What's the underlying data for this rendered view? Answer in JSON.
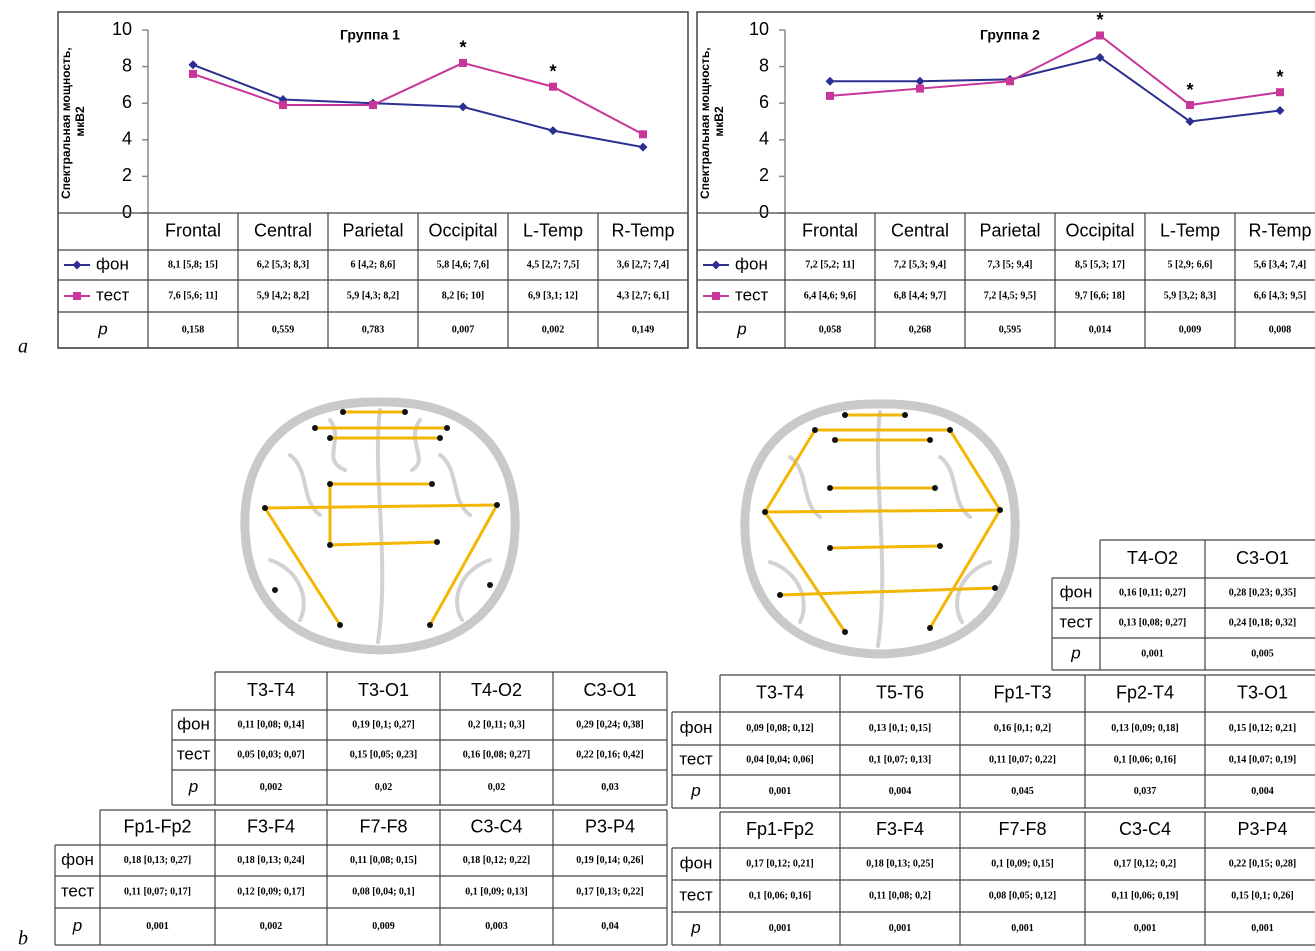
{
  "panel_labels": [
    "a",
    "b"
  ],
  "chart_data": [
    {
      "type": "line",
      "title": "Группа 1",
      "y_label": "Спектральная мощность, мкВ2",
      "categories": [
        "Frontal",
        "Central",
        "Parietal",
        "Occipital",
        "L-Temp",
        "R-Temp"
      ],
      "series": [
        {
          "name": "фон",
          "color": "#2b2f8f",
          "marker": "diamond",
          "values": [
            8.1,
            6.2,
            6,
            5.8,
            4.5,
            3.6
          ],
          "value_labels": [
            "8,1 [5,8; 15]",
            "6,2 [5,3; 8,3]",
            "6 [4,2; 8,6]",
            "5,8 [4,6; 7,6]",
            "4,5 [2,7; 7,5]",
            "3,6 [2,7; 7,4]"
          ]
        },
        {
          "name": "тест",
          "color": "#c8369a",
          "marker": "square",
          "values": [
            7.6,
            5.9,
            5.9,
            8.2,
            6.9,
            4.3
          ],
          "value_labels": [
            "7,6 [5,6; 11]",
            "5,9 [4,2; 8,2]",
            "5,9 [4,3; 8,2]",
            "8,2 [6; 10]",
            "6,9 [3,1; 12]",
            "4,3 [2,7; 6,1]"
          ]
        }
      ],
      "ylim": [
        0,
        10
      ],
      "yticks": [
        0,
        2,
        4,
        6,
        8,
        10
      ],
      "p_label": "p",
      "p_values": [
        "0,158",
        "0,559",
        "0,783",
        "0,007",
        "0,002",
        "0,149"
      ],
      "annotations": [
        {
          "text": "*",
          "x": "Occipital"
        },
        {
          "text": "*",
          "x": "L-Temp"
        }
      ]
    },
    {
      "type": "line",
      "title": "Группа 2",
      "y_label": "Спектральная мощность, мкВ2",
      "categories": [
        "Frontal",
        "Central",
        "Parietal",
        "Occipital",
        "L-Temp",
        "R-Temp"
      ],
      "series": [
        {
          "name": "фон",
          "color": "#2b2f8f",
          "marker": "diamond",
          "values": [
            7.2,
            7.2,
            7.3,
            8.5,
            5,
            5.6
          ],
          "value_labels": [
            "7,2 [5,2; 11]",
            "7,2 [5,3; 9,4]",
            "7,3 [5; 9,4]",
            "8,5 [5,3; 17]",
            "5 [2,9; 6,6]",
            "5,6 [3,4; 7,4]"
          ]
        },
        {
          "name": "тест",
          "color": "#c8369a",
          "marker": "square",
          "values": [
            6.4,
            6.8,
            7.2,
            9.7,
            5.9,
            6.6
          ],
          "value_labels": [
            "6,4 [4,6; 9,6]",
            "6,8 [4,4; 9,7]",
            "7,2 [4,5; 9,5]",
            "9,7 [6,6; 18]",
            "5,9 [3,2; 8,3]",
            "6,6 [4,3; 9,5]"
          ]
        }
      ],
      "ylim": [
        0,
        10
      ],
      "yticks": [
        0,
        2,
        4,
        6,
        8,
        10
      ],
      "p_label": "p",
      "p_values": [
        "0,058",
        "0,268",
        "0,595",
        "0,014",
        "0,009",
        "0,008"
      ],
      "annotations": [
        {
          "text": "*",
          "x": "Occipital"
        },
        {
          "text": "*",
          "x": "L-Temp"
        },
        {
          "text": "*",
          "x": "R-Temp"
        }
      ]
    }
  ],
  "tables": [
    {
      "columns": [
        "T3-T4",
        "T3-O1",
        "T4-O2",
        "C3-O1"
      ],
      "rows": [
        [
          "фон",
          "0,11 [0,08; 0,14]",
          "0,19 [0,1; 0,27]",
          "0,2 [0,11; 0,3]",
          "0,29 [0,24; 0,38]"
        ],
        [
          "тест",
          "0,05 [0,03; 0,07]",
          "0,15 [0,05; 0,23]",
          "0,16 [0,08; 0,27]",
          "0,22 [0,16; 0,42]"
        ],
        [
          "p",
          "0,002",
          "0,02",
          "0,02",
          "0,03"
        ]
      ]
    },
    {
      "columns": [
        "Fp1-Fp2",
        "F3-F4",
        "F7-F8",
        "C3-C4",
        "P3-P4"
      ],
      "rows": [
        [
          "фон",
          "0,18 [0,13; 0,27]",
          "0,18 [0,13; 0,24]",
          "0,11 [0,08; 0,15]",
          "0,18 [0,12; 0,22]",
          "0,19 [0,14; 0,26]"
        ],
        [
          "тест",
          "0,11 [0,07; 0,17]",
          "0,12 [0,09; 0,17]",
          "0,08 [0,04; 0,1]",
          "0,1 [0,09; 0,13]",
          "0,17 [0,13; 0,22]"
        ],
        [
          "p",
          "0,001",
          "0,002",
          "0,009",
          "0,003",
          "0,04"
        ]
      ]
    },
    {
      "columns": [
        "T4-O2",
        "C3-O1"
      ],
      "rows": [
        [
          "фон",
          "0,16 [0,11; 0,27]",
          "0,28 [0,23; 0,35]"
        ],
        [
          "тест",
          "0,13 [0,08; 0,27]",
          "0,24 [0,18; 0,32]"
        ],
        [
          "p",
          "0,001",
          "0,005"
        ]
      ]
    },
    {
      "columns": [
        "T3-T4",
        "T5-T6",
        "Fp1-T3",
        "Fp2-T4",
        "T3-O1"
      ],
      "rows": [
        [
          "фон",
          "0,09 [0,08; 0,12]",
          "0,13 [0,1; 0,15]",
          "0,16 [0,1; 0,2]",
          "0,13 [0,09; 0,18]",
          "0,15 [0,12; 0,21]"
        ],
        [
          "тест",
          "0,04 [0,04; 0,06]",
          "0,1 [0,07; 0,13]",
          "0,11 [0,07; 0,22]",
          "0,1 [0,06; 0,16]",
          "0,14 [0,07; 0,19]"
        ],
        [
          "p",
          "0,001",
          "0,004",
          "0,045",
          "0,037",
          "0,004"
        ]
      ]
    },
    {
      "columns": [
        "Fp1-Fp2",
        "F3-F4",
        "F7-F8",
        "C3-C4",
        "P3-P4"
      ],
      "rows": [
        [
          "фон",
          "0,17 [0,12; 0,21]",
          "0,18 [0,13; 0,25]",
          "0,1 [0,09; 0,15]",
          "0,17 [0,12; 0,2]",
          "0,22 [0,15; 0,28]"
        ],
        [
          "тест",
          "0,1 [0,06; 0,16]",
          "0,11 [0,08; 0,2]",
          "0,08 [0,05; 0,12]",
          "0,11 [0,06; 0,19]",
          "0,15 [0,1; 0,26]"
        ],
        [
          "p",
          "0,001",
          "0,001",
          "0,001",
          "0,001",
          "0,001"
        ]
      ]
    }
  ]
}
